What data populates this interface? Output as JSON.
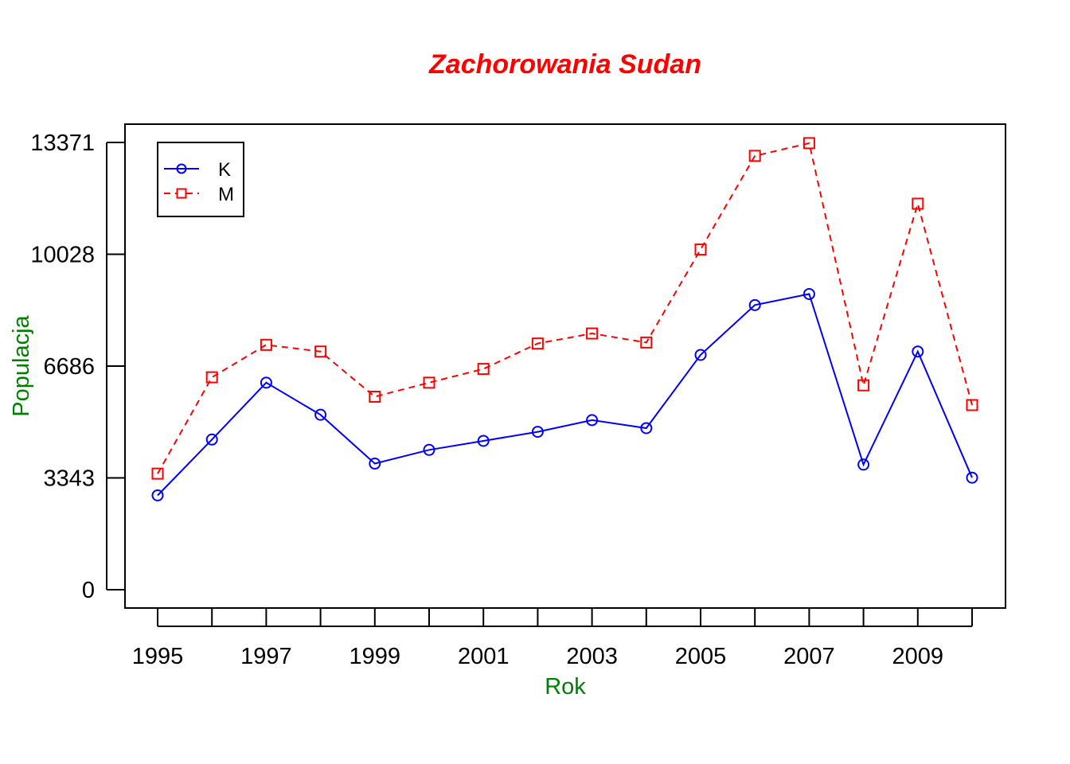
{
  "chart_data": {
    "type": "line",
    "title": "Zachorowania Sudan",
    "xlabel": "Rok",
    "ylabel": "Populacja",
    "x": [
      1995,
      1996,
      1997,
      1998,
      1999,
      2000,
      2001,
      2002,
      2003,
      2004,
      2005,
      2006,
      2007,
      2008,
      2009,
      2010
    ],
    "x_tick_labels": [
      "1995",
      "1997",
      "1999",
      "2001",
      "2003",
      "2005",
      "2007",
      "2009"
    ],
    "y_tick_labels": [
      "0",
      "3343",
      "6686",
      "10028",
      "13371"
    ],
    "y_ticks": [
      0,
      3343,
      6686,
      10028,
      13371
    ],
    "xlim": [
      1995,
      2010
    ],
    "ylim": [
      0,
      13371
    ],
    "series": [
      {
        "name": "K",
        "color": "#0000ff",
        "line_style": "solid",
        "marker": "circle",
        "values": [
          2820,
          4490,
          6190,
          5230,
          3770,
          4180,
          4450,
          4720,
          5070,
          4830,
          7020,
          8510,
          8840,
          3740,
          7120,
          3350
        ]
      },
      {
        "name": "M",
        "color": "#ff0000",
        "line_style": "dashed",
        "marker": "square",
        "values": [
          3470,
          6350,
          7320,
          7120,
          5770,
          6190,
          6600,
          7360,
          7660,
          7390,
          10170,
          12970,
          13350,
          6110,
          11540,
          5520
        ]
      }
    ],
    "grid": false,
    "legend_position": "top-left"
  }
}
